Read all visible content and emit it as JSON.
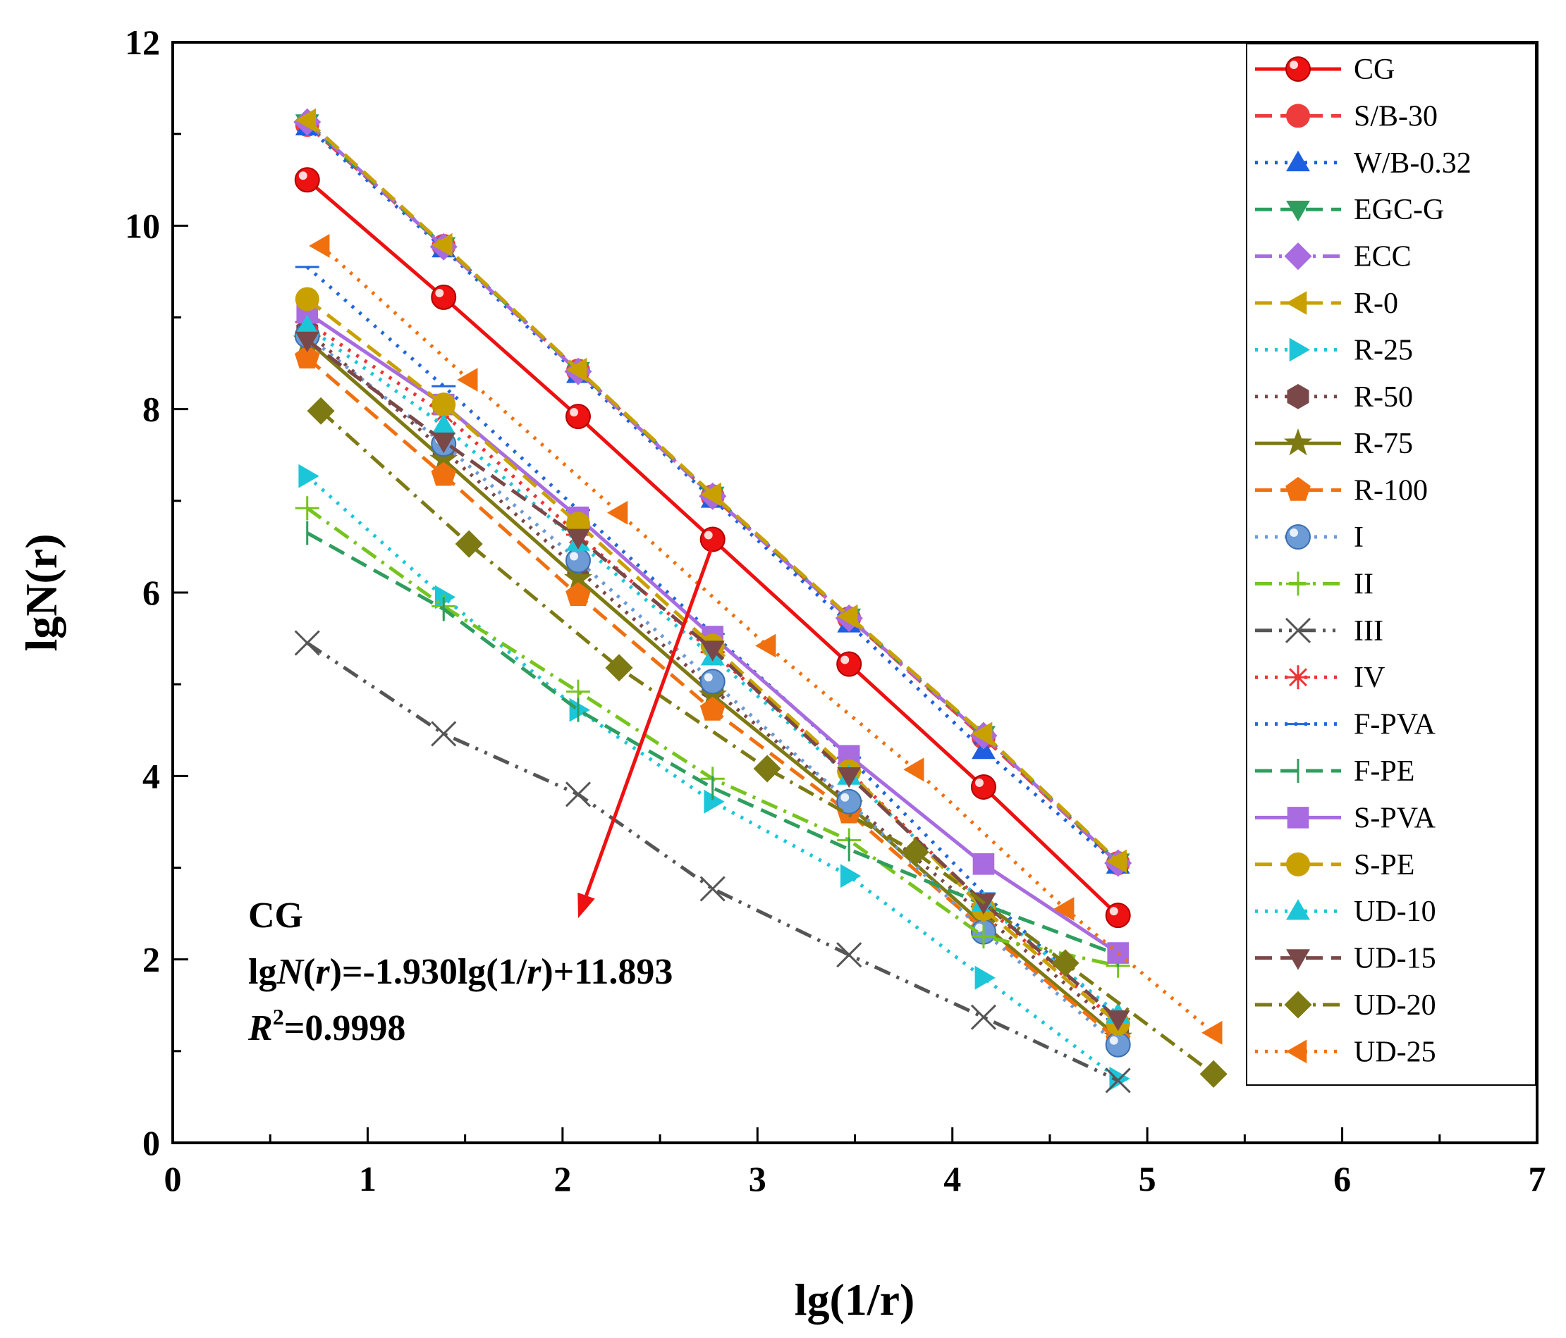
{
  "chart_data": {
    "type": "line",
    "xlabel": "lg(1/r)",
    "ylabel": "lgN(r)",
    "xlim": [
      0,
      7
    ],
    "ylim": [
      0,
      12
    ],
    "xticks": [
      0,
      1,
      2,
      3,
      4,
      5,
      6,
      7
    ],
    "yticks": [
      0,
      2,
      4,
      6,
      8,
      10,
      12
    ],
    "xtick_labels": [
      "0",
      "1",
      "2",
      "3",
      "4",
      "5",
      "6",
      "7"
    ],
    "ytick_labels": [
      "0",
      "2",
      "4",
      "6",
      "8",
      "10",
      "12"
    ],
    "legend_position": "top-right",
    "annotation": {
      "title": "CG",
      "eq_part1": "lg",
      "eq_part2": "N",
      "eq_part3": "(",
      "eq_part4": "r",
      "eq_part5": ")=-1.930lg(1/",
      "eq_part6": "r",
      "eq_part7": ")+11.893",
      "r2_symbol": "R",
      "r2_exponent": "2",
      "r2_value": "=0.9998",
      "arrow_from": [
        2.78,
        6.58
      ],
      "arrow_to": [
        2.08,
        2.45
      ],
      "arrow_color": "#ee1111"
    },
    "series": [
      {
        "name": "CG",
        "color": "#ee1111",
        "dash": "solid",
        "marker": "ballcircle",
        "x": [
          0.69,
          1.39,
          2.08,
          2.77,
          3.47,
          4.16,
          4.85
        ],
        "y": [
          10.5,
          9.22,
          7.92,
          6.58,
          5.22,
          3.88,
          2.48
        ]
      },
      {
        "name": "S/B-30",
        "color": "#ee3b3b",
        "dash": "dash",
        "marker": "circle",
        "x": [
          0.69,
          1.39,
          2.08,
          2.77,
          3.47,
          4.16,
          4.85
        ],
        "y": [
          11.1,
          9.78,
          8.42,
          7.05,
          5.72,
          4.42,
          3.05
        ]
      },
      {
        "name": "W/B-0.32",
        "color": "#1e5fe0",
        "dash": "dot",
        "marker": "triangle-up",
        "x": [
          0.69,
          1.39,
          2.08,
          2.77,
          3.47,
          4.16,
          4.85
        ],
        "y": [
          11.08,
          9.75,
          8.38,
          7.02,
          5.66,
          4.28,
          3.03
        ]
      },
      {
        "name": "EGC-G",
        "color": "#2e9e5e",
        "dash": "dash",
        "marker": "triangle-down",
        "x": [
          0.69,
          1.39,
          2.08,
          2.77,
          3.47,
          4.16,
          4.85
        ],
        "y": [
          11.12,
          9.78,
          8.42,
          7.06,
          5.73,
          4.45,
          3.06
        ]
      },
      {
        "name": "ECC",
        "color": "#a86be0",
        "dash": "dashdot",
        "marker": "diamond",
        "x": [
          0.69,
          1.39,
          2.08,
          2.77,
          3.47,
          4.16,
          4.85
        ],
        "y": [
          11.13,
          9.77,
          8.41,
          7.05,
          5.72,
          4.44,
          3.05
        ]
      },
      {
        "name": "R-0",
        "color": "#c8a000",
        "dash": "dash",
        "marker": "triangle-left",
        "x": [
          0.69,
          1.39,
          2.08,
          2.77,
          3.47,
          4.16,
          4.85
        ],
        "y": [
          11.15,
          9.79,
          8.43,
          7.07,
          5.74,
          4.46,
          3.07
        ]
      },
      {
        "name": "R-25",
        "color": "#1cc6d8",
        "dash": "dot",
        "marker": "triangle-right",
        "x": [
          0.69,
          1.39,
          2.08,
          2.77,
          3.47,
          4.16,
          4.85
        ],
        "y": [
          7.27,
          5.95,
          4.72,
          3.72,
          2.91,
          1.8,
          0.7
        ]
      },
      {
        "name": "R-50",
        "color": "#7a4848",
        "dash": "dot",
        "marker": "hexagon",
        "x": [
          0.69,
          1.39,
          2.08,
          2.77,
          3.47,
          4.16,
          4.85
        ],
        "y": [
          8.85,
          7.55,
          6.25,
          4.95,
          3.72,
          2.48,
          1.25
        ]
      },
      {
        "name": "R-75",
        "color": "#7d7a14",
        "dash": "solid",
        "marker": "star",
        "x": [
          0.69,
          1.39,
          2.08,
          2.77,
          3.47,
          4.16,
          4.85
        ],
        "y": [
          8.75,
          7.45,
          6.15,
          4.88,
          3.68,
          2.38,
          1.15
        ]
      },
      {
        "name": "R-100",
        "color": "#f07010",
        "dash": "dash",
        "marker": "pentagon",
        "x": [
          0.69,
          1.39,
          2.08,
          2.77,
          3.47,
          4.16,
          4.85
        ],
        "y": [
          8.56,
          7.28,
          5.97,
          4.72,
          3.6,
          2.33,
          1.12
        ]
      },
      {
        "name": "I",
        "color": "#6c9bd6",
        "dash": "dot",
        "marker": "ball-blue",
        "x": [
          0.69,
          1.39,
          2.08,
          2.77,
          3.47,
          4.16,
          4.85
        ],
        "y": [
          8.8,
          7.62,
          6.35,
          5.03,
          3.72,
          2.3,
          1.07
        ]
      },
      {
        "name": "II",
        "color": "#76c41e",
        "dash": "dashdot",
        "marker": "plus",
        "x": [
          0.69,
          1.39,
          2.08,
          2.77,
          3.47,
          4.16,
          4.85
        ],
        "y": [
          6.92,
          5.85,
          4.92,
          3.97,
          3.3,
          2.25,
          1.93
        ]
      },
      {
        "name": "III",
        "color": "#555555",
        "dash": "dashdotdot",
        "marker": "x",
        "x": [
          0.69,
          1.39,
          2.08,
          2.77,
          3.47,
          4.16,
          4.85
        ],
        "y": [
          5.45,
          4.46,
          3.8,
          2.77,
          2.05,
          1.37,
          0.68
        ]
      },
      {
        "name": "IV",
        "color": "#ee3333",
        "dash": "dot",
        "marker": "asterisk",
        "x": [
          0.69,
          1.39,
          2.08,
          2.77,
          3.47,
          4.16,
          4.85
        ],
        "y": [
          8.95,
          7.95,
          6.63,
          5.35,
          4.05,
          2.6,
          1.3
        ]
      },
      {
        "name": "F-PVA",
        "color": "#2266dd",
        "dash": "dot",
        "marker": "hline",
        "x": [
          0.69,
          1.39,
          2.08,
          2.77,
          3.47,
          4.16,
          4.85
        ],
        "y": [
          9.55,
          8.25,
          6.9,
          5.55,
          4.2,
          2.72,
          1.35
        ]
      },
      {
        "name": "F-PE",
        "color": "#2e9e5e",
        "dash": "dash",
        "marker": "vline",
        "x": [
          0.69,
          1.39,
          2.08,
          2.77,
          3.47,
          4.16,
          4.85
        ],
        "y": [
          6.65,
          5.82,
          4.72,
          3.87,
          3.2,
          2.6,
          2.05
        ]
      },
      {
        "name": "S-PVA",
        "color": "#a86be0",
        "dash": "solid",
        "marker": "square",
        "x": [
          0.69,
          1.39,
          2.08,
          2.77,
          3.47,
          4.16,
          4.85
        ],
        "y": [
          9.05,
          8.05,
          6.82,
          5.52,
          4.22,
          3.04,
          2.07
        ]
      },
      {
        "name": "S-PE",
        "color": "#c8a000",
        "dash": "dash",
        "marker": "circle",
        "x": [
          0.69,
          1.39,
          2.08,
          2.77,
          3.47,
          4.16,
          4.85
        ],
        "y": [
          9.2,
          8.05,
          6.75,
          5.42,
          4.05,
          2.55,
          1.3
        ]
      },
      {
        "name": "UD-10",
        "color": "#1cc6d8",
        "dash": "dot",
        "marker": "triangle-up",
        "x": [
          0.69,
          1.39,
          2.08,
          2.77,
          3.47,
          4.16,
          4.85
        ],
        "y": [
          8.9,
          7.82,
          6.55,
          5.3,
          4.0,
          2.62,
          1.4
        ]
      },
      {
        "name": "UD-15",
        "color": "#7a4848",
        "dash": "dash",
        "marker": "triangle-down",
        "x": [
          0.69,
          1.39,
          2.08,
          2.77,
          3.47,
          4.16,
          4.85
        ],
        "y": [
          8.75,
          7.65,
          6.6,
          5.38,
          4.0,
          2.62,
          1.35
        ]
      },
      {
        "name": "UD-20",
        "color": "#7d7a14",
        "dash": "dashdot",
        "marker": "diamond",
        "x": [
          0.76,
          1.52,
          2.29,
          3.05,
          3.81,
          4.58,
          5.34
        ],
        "y": [
          7.98,
          6.53,
          5.18,
          4.08,
          3.17,
          1.96,
          0.75
        ]
      },
      {
        "name": "UD-25",
        "color": "#f07010",
        "dash": "dot",
        "marker": "triangle-left",
        "x": [
          0.76,
          1.52,
          2.29,
          3.05,
          3.81,
          4.58,
          5.34
        ],
        "y": [
          9.78,
          8.32,
          6.87,
          5.42,
          4.07,
          2.55,
          1.2
        ]
      }
    ]
  }
}
